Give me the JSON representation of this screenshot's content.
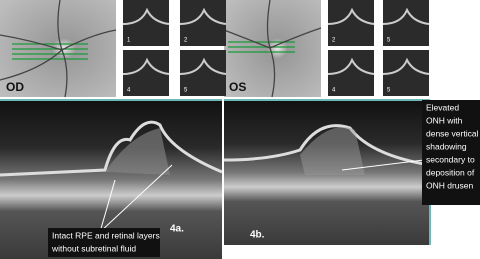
{
  "panels": {
    "left_eye": {
      "label": "OD",
      "thumbnail_numbers": [
        "1",
        "2",
        "4",
        "5"
      ]
    },
    "right_eye": {
      "label": "OS",
      "thumbnail_numbers": [
        "2",
        "5",
        "4",
        "5"
      ]
    }
  },
  "figures": {
    "a": {
      "label": "4a."
    },
    "b": {
      "label": "4b."
    }
  },
  "annotations": {
    "right": {
      "lines": [
        "Elevated",
        "ONH with",
        "dense vertical",
        "shadowing",
        "secondary to",
        "deposition of",
        "ONH drusen"
      ]
    },
    "left": {
      "lines": [
        "Intact RPE and retinal layers",
        "without subretinal fluid"
      ]
    }
  }
}
